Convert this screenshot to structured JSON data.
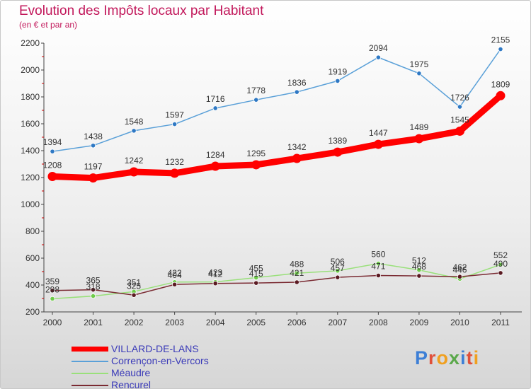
{
  "header": {
    "title": "Evolution des Impôts locaux par Habitant",
    "subtitle": "(en € et par an)"
  },
  "logo": {
    "text": "Proxiti"
  },
  "chart_data": {
    "type": "line",
    "title": "Evolution des Impôts locaux par Habitant",
    "subtitle": "(en € et par an)",
    "x": [
      "2000",
      "2001",
      "2002",
      "2003",
      "2004",
      "2005",
      "2006",
      "2007",
      "2008",
      "2009",
      "2010",
      "2011"
    ],
    "ylim": [
      200,
      2200
    ],
    "yticks": [
      200,
      400,
      600,
      800,
      1000,
      1200,
      1400,
      1600,
      1800,
      2000,
      2200
    ],
    "grid": false,
    "legend_position": "bottom-left",
    "series": [
      {
        "name": "VILLARD-DE-LANS",
        "color": "#ff0000",
        "emphasis": true,
        "values": [
          1208,
          1197,
          1242,
          1232,
          1284,
          1295,
          1342,
          1389,
          1447,
          1489,
          1545,
          1809
        ]
      },
      {
        "name": "Corrençon-en-Vercors",
        "color": "#5aa0d8",
        "marker": "#2e78c4",
        "values": [
          1394,
          1438,
          1548,
          1597,
          1716,
          1778,
          1836,
          1919,
          2094,
          1975,
          1726,
          2155
        ]
      },
      {
        "name": "Méaudre",
        "color": "#99e07a",
        "marker": "#6ecb4a",
        "values": [
          298,
          318,
          351,
          422,
          423,
          455,
          488,
          506,
          560,
          512,
          446,
          552
        ]
      },
      {
        "name": "Rencurel",
        "color": "#7a2a32",
        "marker": "#5a1a22",
        "values": [
          359,
          365,
          325,
          404,
          412,
          415,
          421,
          457,
          471,
          468,
          462,
          490
        ]
      }
    ]
  }
}
